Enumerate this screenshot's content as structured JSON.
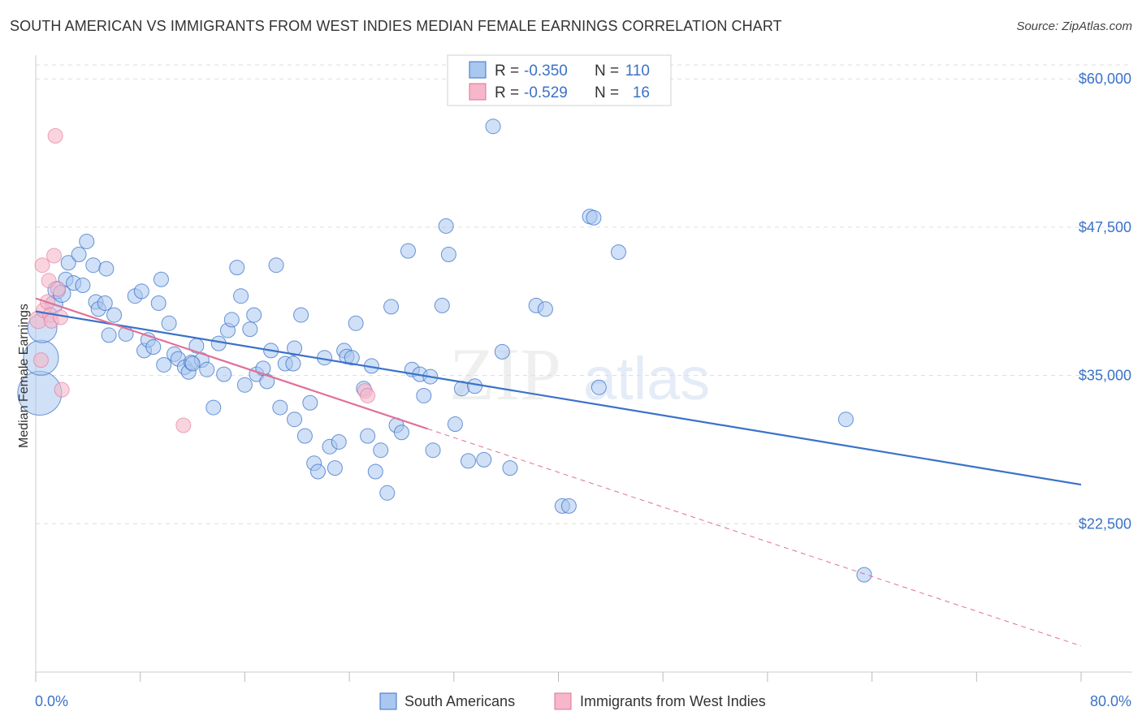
{
  "title": "SOUTH AMERICAN VS IMMIGRANTS FROM WEST INDIES MEDIAN FEMALE EARNINGS CORRELATION CHART",
  "source": "Source: ZipAtlas.com",
  "watermark": {
    "zip": "ZIP",
    "atlas": "atlas"
  },
  "colors": {
    "blue": "#3a72c8",
    "blue_fill": "#a9c7ef",
    "pink": "#e07098",
    "pink_fill": "#f5b7c9",
    "grid": "#dddddd"
  },
  "legend": {
    "row1": {
      "r_label": "R =",
      "r_value": "-0.350",
      "n_label": "N =",
      "n_value": "110"
    },
    "row2": {
      "r_label": "R =",
      "r_value": "-0.529",
      "n_label": "N =",
      "n_value": "16"
    }
  },
  "bottom_legend": {
    "series1": "South Americans",
    "series2": "Immigrants from West Indies"
  },
  "chart_data": {
    "type": "scatter",
    "title": "SOUTH AMERICAN VS IMMIGRANTS FROM WEST INDIES MEDIAN FEMALE EARNINGS CORRELATION CHART",
    "xlabel": "",
    "ylabel": "Median Female Earnings",
    "xlim": [
      0,
      80
    ],
    "ylim": [
      10000,
      62000
    ],
    "x_tick_labels": [
      "0.0%",
      "80.0%"
    ],
    "y_ticks": [
      22500,
      35000,
      47500,
      60000
    ],
    "y_tick_labels": [
      "$22,500",
      "$35,000",
      "$47,500",
      "$60,000"
    ],
    "series": [
      {
        "name": "South Americans",
        "r": -0.35,
        "n": 110,
        "trend": {
          "x": [
            0,
            80
          ],
          "y": [
            40400,
            25800
          ]
        },
        "points": [
          [
            0.3,
            33500,
            3
          ],
          [
            0.4,
            36500,
            2.4
          ],
          [
            0.5,
            39000,
            2
          ],
          [
            1.4,
            41000,
            1.2
          ],
          [
            1.6,
            42200,
            1.2
          ],
          [
            2.0,
            41900,
            1.2
          ],
          [
            2.3,
            43100,
            1
          ],
          [
            2.5,
            44500,
            1
          ],
          [
            2.9,
            42800,
            1
          ],
          [
            3.3,
            45200,
            1
          ],
          [
            3.6,
            42600,
            1
          ],
          [
            3.9,
            46300,
            1
          ],
          [
            4.4,
            44300,
            1
          ],
          [
            4.6,
            41200,
            1
          ],
          [
            4.8,
            40600,
            1
          ],
          [
            5.3,
            41100,
            1
          ],
          [
            5.4,
            44000,
            1
          ],
          [
            5.6,
            38400,
            1
          ],
          [
            6.0,
            40100,
            1
          ],
          [
            6.9,
            38500,
            1
          ],
          [
            7.6,
            41700,
            1
          ],
          [
            8.1,
            42100,
            1
          ],
          [
            8.3,
            37100,
            1
          ],
          [
            8.6,
            38000,
            1
          ],
          [
            9.0,
            37400,
            1
          ],
          [
            9.4,
            41100,
            1
          ],
          [
            9.6,
            43100,
            1
          ],
          [
            9.8,
            35900,
            1
          ],
          [
            10.2,
            39400,
            1
          ],
          [
            10.6,
            36800,
            1
          ],
          [
            10.9,
            36400,
            1
          ],
          [
            11.4,
            35700,
            1
          ],
          [
            11.7,
            35300,
            1
          ],
          [
            11.9,
            36100,
            1
          ],
          [
            12.3,
            37500,
            1
          ],
          [
            12.7,
            36300,
            1
          ],
          [
            13.1,
            35500,
            1
          ],
          [
            13.6,
            32300,
            1
          ],
          [
            14.0,
            37700,
            1
          ],
          [
            14.4,
            35100,
            1
          ],
          [
            14.7,
            38800,
            1
          ],
          [
            15.0,
            39700,
            1
          ],
          [
            15.4,
            44100,
            1
          ],
          [
            15.7,
            41700,
            1
          ],
          [
            16.0,
            34200,
            1
          ],
          [
            16.4,
            38900,
            1
          ],
          [
            16.7,
            40100,
            1
          ],
          [
            16.9,
            35100,
            1
          ],
          [
            17.4,
            35600,
            1
          ],
          [
            17.7,
            34500,
            1
          ],
          [
            18.0,
            37100,
            1
          ],
          [
            18.4,
            44300,
            1
          ],
          [
            18.7,
            32300,
            1
          ],
          [
            19.1,
            36000,
            1
          ],
          [
            19.7,
            36000,
            1
          ],
          [
            19.8,
            31300,
            1
          ],
          [
            20.3,
            40100,
            1
          ],
          [
            20.6,
            29900,
            1
          ],
          [
            21.0,
            32700,
            1
          ],
          [
            21.3,
            27600,
            1
          ],
          [
            21.6,
            26900,
            1
          ],
          [
            22.1,
            36500,
            1
          ],
          [
            22.5,
            29000,
            1
          ],
          [
            22.9,
            27200,
            1
          ],
          [
            23.2,
            29400,
            1
          ],
          [
            23.6,
            37100,
            1
          ],
          [
            23.8,
            36600,
            1
          ],
          [
            24.2,
            36500,
            1
          ],
          [
            24.5,
            39400,
            1
          ],
          [
            25.1,
            33900,
            1
          ],
          [
            25.4,
            29900,
            1
          ],
          [
            25.7,
            35800,
            1
          ],
          [
            26.0,
            26900,
            1
          ],
          [
            26.4,
            28700,
            1
          ],
          [
            26.9,
            25100,
            1
          ],
          [
            27.2,
            40800,
            1
          ],
          [
            27.6,
            30800,
            1
          ],
          [
            28.0,
            30200,
            1
          ],
          [
            28.5,
            45500,
            1
          ],
          [
            28.8,
            35500,
            1
          ],
          [
            29.4,
            35100,
            1
          ],
          [
            29.7,
            33300,
            1
          ],
          [
            30.2,
            34900,
            1
          ],
          [
            30.4,
            28700,
            1
          ],
          [
            31.1,
            40900,
            1
          ],
          [
            31.4,
            47600,
            1
          ],
          [
            31.6,
            45200,
            1
          ],
          [
            32.1,
            30900,
            1
          ],
          [
            32.6,
            33900,
            1
          ],
          [
            33.1,
            27800,
            1
          ],
          [
            33.6,
            34100,
            1
          ],
          [
            34.3,
            27900,
            1
          ],
          [
            35.0,
            56000,
            1
          ],
          [
            35.7,
            37000,
            1
          ],
          [
            36.3,
            27200,
            1
          ],
          [
            38.3,
            40900,
            1
          ],
          [
            39.0,
            40600,
            1
          ],
          [
            40.3,
            24000,
            1
          ],
          [
            40.8,
            24000,
            1
          ],
          [
            42.4,
            48400,
            1
          ],
          [
            42.7,
            48300,
            1
          ],
          [
            43.1,
            34000,
            1
          ],
          [
            44.6,
            45400,
            1
          ],
          [
            62.0,
            31300,
            1
          ],
          [
            63.4,
            18200,
            1
          ],
          [
            12.0,
            36000,
            1
          ],
          [
            19.8,
            37300,
            1
          ]
        ]
      },
      {
        "name": "Immigrants from West Indies",
        "r": -0.529,
        "n": 16,
        "trend": {
          "x": [
            0,
            30
          ],
          "y": [
            41500,
            30500
          ]
        },
        "trend_dashed": {
          "x": [
            30,
            80
          ],
          "y": [
            30500,
            12200
          ]
        },
        "points": [
          [
            0.2,
            39700,
            1.2
          ],
          [
            0.4,
            36300,
            1
          ],
          [
            0.5,
            44300,
            1
          ],
          [
            0.6,
            40500,
            1
          ],
          [
            0.9,
            41200,
            1
          ],
          [
            1.0,
            43000,
            1
          ],
          [
            1.1,
            40100,
            1
          ],
          [
            1.2,
            39600,
            1
          ],
          [
            1.4,
            45100,
            1
          ],
          [
            1.5,
            55200,
            1
          ],
          [
            1.7,
            42300,
            1
          ],
          [
            1.9,
            39900,
            1
          ],
          [
            2.0,
            33800,
            1
          ],
          [
            11.3,
            30800,
            1
          ],
          [
            25.2,
            33700,
            1
          ],
          [
            25.4,
            33300,
            1
          ]
        ]
      }
    ]
  }
}
